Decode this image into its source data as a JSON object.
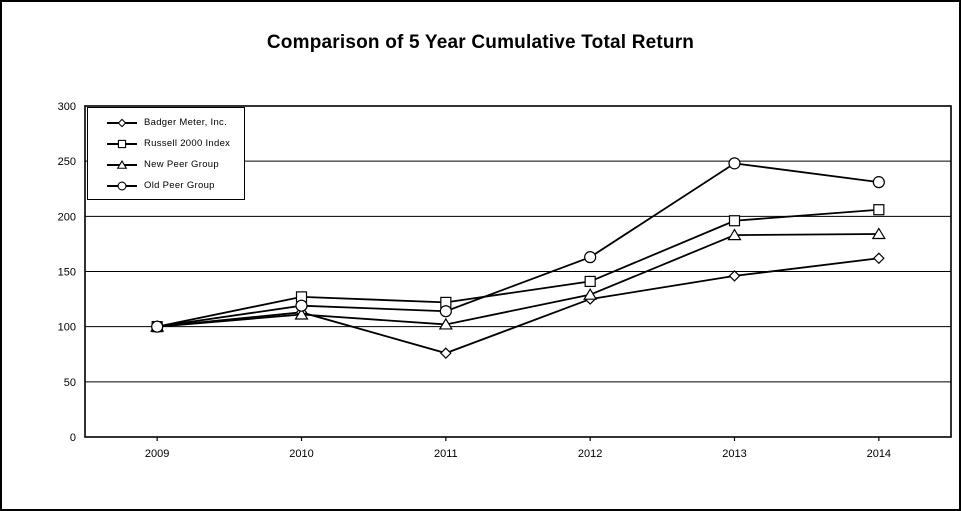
{
  "title": "Comparison of 5 Year Cumulative Total Return",
  "colors": {
    "line": "#000000",
    "marker_fill": "#ffffff",
    "background": "#ffffff",
    "border": "#000000"
  },
  "chart_data": {
    "type": "line",
    "title": "Comparison of 5 Year Cumulative Total Return",
    "categories": [
      "2009",
      "2010",
      "2011",
      "2012",
      "2013",
      "2014"
    ],
    "series": [
      {
        "name": "Badger Meter, Inc.",
        "marker": "diamond",
        "values": [
          100,
          113,
          76,
          125,
          146,
          162
        ]
      },
      {
        "name": "Russell 2000 Index",
        "marker": "square",
        "values": [
          100,
          127,
          122,
          141,
          196,
          206
        ]
      },
      {
        "name": "New Peer Group",
        "marker": "triangle",
        "values": [
          100,
          111,
          102,
          129,
          183,
          184
        ]
      },
      {
        "name": "Old Peer Group",
        "marker": "circle",
        "values": [
          100,
          119,
          114,
          163,
          248,
          231
        ]
      }
    ],
    "xlabel": "",
    "ylabel": "",
    "ylim": [
      0,
      300
    ],
    "yticks": [
      0,
      50,
      100,
      150,
      200,
      250,
      300
    ],
    "grid": "horizontal",
    "legend_position": "top-left",
    "line_color": "#000000"
  }
}
